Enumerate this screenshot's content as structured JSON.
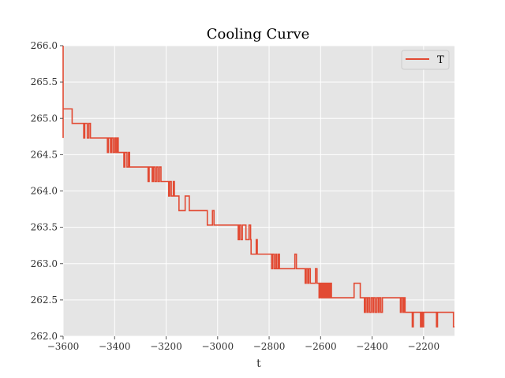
{
  "chart_data": {
    "type": "line",
    "title": "Cooling Curve",
    "xlabel": "t",
    "ylabel": "",
    "xlim": [
      -3600,
      -2080
    ],
    "ylim": [
      262.0,
      266.0
    ],
    "x_ticks": [
      -3600,
      -3400,
      -3200,
      -3000,
      -2800,
      -2600,
      -2400,
      -2200
    ],
    "x_tick_labels": [
      "−3600",
      "−3400",
      "−3200",
      "−3000",
      "−2800",
      "−2600",
      "−2400",
      "−2200"
    ],
    "y_ticks": [
      262.0,
      262.5,
      263.0,
      263.5,
      264.0,
      264.5,
      265.0,
      265.5,
      266.0
    ],
    "y_tick_labels": [
      "262.0",
      "262.5",
      "263.0",
      "263.5",
      "264.0",
      "264.5",
      "265.0",
      "265.5",
      "266.0"
    ],
    "grid": true,
    "legend": "top-right",
    "colors": {
      "plot_bg": "#e5e5e5",
      "grid": "#ffffff",
      "series": "#e24a33"
    },
    "series": [
      {
        "name": "T",
        "color": "#e24a33",
        "points": [
          [
            -3600,
            266.0
          ],
          [
            -3600,
            264.73
          ],
          [
            -3600,
            265.33
          ],
          [
            -3600,
            265.13
          ],
          [
            -3565,
            265.13
          ],
          [
            -3565,
            264.93
          ],
          [
            -3520,
            264.93
          ],
          [
            -3520,
            264.73
          ],
          [
            -3516,
            264.73
          ],
          [
            -3516,
            264.93
          ],
          [
            -3506,
            264.93
          ],
          [
            -3506,
            264.73
          ],
          [
            -3500,
            264.73
          ],
          [
            -3500,
            264.93
          ],
          [
            -3494,
            264.93
          ],
          [
            -3494,
            264.73
          ],
          [
            -3428,
            264.73
          ],
          [
            -3428,
            264.53
          ],
          [
            -3424,
            264.53
          ],
          [
            -3424,
            264.73
          ],
          [
            -3416,
            264.73
          ],
          [
            -3416,
            264.53
          ],
          [
            -3412,
            264.53
          ],
          [
            -3412,
            264.73
          ],
          [
            -3406,
            264.73
          ],
          [
            -3406,
            264.53
          ],
          [
            -3400,
            264.53
          ],
          [
            -3400,
            264.73
          ],
          [
            -3395,
            264.73
          ],
          [
            -3395,
            264.53
          ],
          [
            -3390,
            264.53
          ],
          [
            -3390,
            264.73
          ],
          [
            -3386,
            264.73
          ],
          [
            -3386,
            264.53
          ],
          [
            -3364,
            264.53
          ],
          [
            -3364,
            264.33
          ],
          [
            -3360,
            264.33
          ],
          [
            -3360,
            264.53
          ],
          [
            -3352,
            264.53
          ],
          [
            -3352,
            264.33
          ],
          [
            -3346,
            264.33
          ],
          [
            -3346,
            264.53
          ],
          [
            -3342,
            264.53
          ],
          [
            -3342,
            264.33
          ],
          [
            -3270,
            264.33
          ],
          [
            -3270,
            264.13
          ],
          [
            -3266,
            264.13
          ],
          [
            -3266,
            264.33
          ],
          [
            -3254,
            264.33
          ],
          [
            -3254,
            264.13
          ],
          [
            -3250,
            264.13
          ],
          [
            -3250,
            264.33
          ],
          [
            -3244,
            264.33
          ],
          [
            -3244,
            264.13
          ],
          [
            -3238,
            264.13
          ],
          [
            -3238,
            264.33
          ],
          [
            -3232,
            264.33
          ],
          [
            -3232,
            264.13
          ],
          [
            -3226,
            264.13
          ],
          [
            -3226,
            264.33
          ],
          [
            -3220,
            264.33
          ],
          [
            -3220,
            264.13
          ],
          [
            -3190,
            264.13
          ],
          [
            -3190,
            263.93
          ],
          [
            -3186,
            263.93
          ],
          [
            -3186,
            264.13
          ],
          [
            -3180,
            264.13
          ],
          [
            -3180,
            263.93
          ],
          [
            -3172,
            263.93
          ],
          [
            -3172,
            264.13
          ],
          [
            -3168,
            264.13
          ],
          [
            -3168,
            263.93
          ],
          [
            -3150,
            263.93
          ],
          [
            -3150,
            263.73
          ],
          [
            -3126,
            263.73
          ],
          [
            -3126,
            263.93
          ],
          [
            -3110,
            263.93
          ],
          [
            -3110,
            263.73
          ],
          [
            -3040,
            263.73
          ],
          [
            -3040,
            263.53
          ],
          [
            -3020,
            263.53
          ],
          [
            -3020,
            263.73
          ],
          [
            -3014,
            263.73
          ],
          [
            -3014,
            263.53
          ],
          [
            -2920,
            263.53
          ],
          [
            -2920,
            263.33
          ],
          [
            -2916,
            263.33
          ],
          [
            -2916,
            263.53
          ],
          [
            -2910,
            263.53
          ],
          [
            -2910,
            263.33
          ],
          [
            -2904,
            263.33
          ],
          [
            -2904,
            263.53
          ],
          [
            -2890,
            263.53
          ],
          [
            -2890,
            263.33
          ],
          [
            -2878,
            263.33
          ],
          [
            -2878,
            263.53
          ],
          [
            -2872,
            263.53
          ],
          [
            -2872,
            263.33
          ],
          [
            -2870,
            263.33
          ],
          [
            -2870,
            263.13
          ],
          [
            -2850,
            263.13
          ],
          [
            -2850,
            263.33
          ],
          [
            -2846,
            263.33
          ],
          [
            -2846,
            263.13
          ],
          [
            -2790,
            263.13
          ],
          [
            -2790,
            262.93
          ],
          [
            -2786,
            262.93
          ],
          [
            -2786,
            263.13
          ],
          [
            -2780,
            263.13
          ],
          [
            -2780,
            262.93
          ],
          [
            -2774,
            262.93
          ],
          [
            -2774,
            263.13
          ],
          [
            -2770,
            263.13
          ],
          [
            -2770,
            262.93
          ],
          [
            -2764,
            262.93
          ],
          [
            -2764,
            263.13
          ],
          [
            -2760,
            263.13
          ],
          [
            -2760,
            262.93
          ],
          [
            -2700,
            262.93
          ],
          [
            -2700,
            263.13
          ],
          [
            -2694,
            263.13
          ],
          [
            -2694,
            262.93
          ],
          [
            -2660,
            262.93
          ],
          [
            -2660,
            262.73
          ],
          [
            -2656,
            262.73
          ],
          [
            -2656,
            262.93
          ],
          [
            -2650,
            262.93
          ],
          [
            -2650,
            262.73
          ],
          [
            -2646,
            262.73
          ],
          [
            -2646,
            262.93
          ],
          [
            -2640,
            262.93
          ],
          [
            -2640,
            262.73
          ],
          [
            -2620,
            262.73
          ],
          [
            -2620,
            262.93
          ],
          [
            -2614,
            262.93
          ],
          [
            -2614,
            262.73
          ],
          [
            -2606,
            262.73
          ],
          [
            -2606,
            262.53
          ],
          [
            -2602,
            262.53
          ],
          [
            -2602,
            262.73
          ],
          [
            -2598,
            262.73
          ],
          [
            -2598,
            262.53
          ],
          [
            -2594,
            262.53
          ],
          [
            -2594,
            262.73
          ],
          [
            -2590,
            262.73
          ],
          [
            -2590,
            262.53
          ],
          [
            -2586,
            262.53
          ],
          [
            -2586,
            262.73
          ],
          [
            -2582,
            262.73
          ],
          [
            -2582,
            262.53
          ],
          [
            -2578,
            262.53
          ],
          [
            -2578,
            262.73
          ],
          [
            -2574,
            262.73
          ],
          [
            -2574,
            262.53
          ],
          [
            -2570,
            262.53
          ],
          [
            -2570,
            262.73
          ],
          [
            -2566,
            262.73
          ],
          [
            -2566,
            262.53
          ],
          [
            -2562,
            262.53
          ],
          [
            -2562,
            262.73
          ],
          [
            -2558,
            262.73
          ],
          [
            -2558,
            262.53
          ],
          [
            -2470,
            262.53
          ],
          [
            -2470,
            262.73
          ],
          [
            -2446,
            262.73
          ],
          [
            -2446,
            262.53
          ],
          [
            -2430,
            262.53
          ],
          [
            -2430,
            262.33
          ],
          [
            -2426,
            262.33
          ],
          [
            -2426,
            262.53
          ],
          [
            -2420,
            262.53
          ],
          [
            -2420,
            262.33
          ],
          [
            -2416,
            262.33
          ],
          [
            -2416,
            262.53
          ],
          [
            -2410,
            262.53
          ],
          [
            -2410,
            262.33
          ],
          [
            -2404,
            262.33
          ],
          [
            -2404,
            262.53
          ],
          [
            -2398,
            262.53
          ],
          [
            -2398,
            262.33
          ],
          [
            -2394,
            262.33
          ],
          [
            -2394,
            262.53
          ],
          [
            -2388,
            262.53
          ],
          [
            -2388,
            262.33
          ],
          [
            -2382,
            262.33
          ],
          [
            -2382,
            262.53
          ],
          [
            -2376,
            262.53
          ],
          [
            -2376,
            262.33
          ],
          [
            -2372,
            262.33
          ],
          [
            -2372,
            262.53
          ],
          [
            -2366,
            262.53
          ],
          [
            -2366,
            262.33
          ],
          [
            -2360,
            262.33
          ],
          [
            -2360,
            262.53
          ],
          [
            -2290,
            262.53
          ],
          [
            -2290,
            262.33
          ],
          [
            -2286,
            262.33
          ],
          [
            -2286,
            262.53
          ],
          [
            -2280,
            262.53
          ],
          [
            -2280,
            262.33
          ],
          [
            -2276,
            262.33
          ],
          [
            -2276,
            262.53
          ],
          [
            -2272,
            262.53
          ],
          [
            -2272,
            262.33
          ],
          [
            -2244,
            262.33
          ],
          [
            -2244,
            262.13
          ],
          [
            -2240,
            262.13
          ],
          [
            -2240,
            262.33
          ],
          [
            -2212,
            262.33
          ],
          [
            -2212,
            262.13
          ],
          [
            -2208,
            262.13
          ],
          [
            -2208,
            262.33
          ],
          [
            -2204,
            262.33
          ],
          [
            -2204,
            262.13
          ],
          [
            -2200,
            262.13
          ],
          [
            -2200,
            262.33
          ],
          [
            -2150,
            262.33
          ],
          [
            -2150,
            262.13
          ],
          [
            -2146,
            262.13
          ],
          [
            -2146,
            262.33
          ],
          [
            -2084,
            262.33
          ],
          [
            -2084,
            262.13
          ],
          [
            -2080,
            262.13
          ]
        ]
      }
    ]
  }
}
